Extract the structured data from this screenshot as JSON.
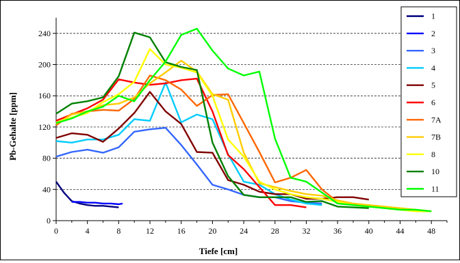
{
  "chart_data": {
    "type": "line",
    "title": "",
    "xlabel": "Tiefe [cm]",
    "ylabel": "Pb-Gehalte [ppm]",
    "xlim": [
      0,
      50
    ],
    "ylim": [
      0,
      260
    ],
    "x_ticks": [
      "0",
      "4",
      "8",
      "12",
      "16",
      "20",
      "24",
      "28",
      "32",
      "36",
      "40",
      "44",
      "48"
    ],
    "x_tick_values": [
      0,
      4,
      8,
      12,
      16,
      20,
      24,
      28,
      32,
      36,
      40,
      44,
      48
    ],
    "y_ticks": [
      "0",
      "40",
      "80",
      "120",
      "160",
      "200",
      "240"
    ],
    "y_tick_values": [
      0,
      40,
      80,
      120,
      160,
      200,
      240
    ],
    "grid": "horizontal dashed",
    "legend_position": "right",
    "series": [
      {
        "name": "1",
        "color": "#000080",
        "x": [
          0,
          1,
          2,
          3,
          4,
          5,
          6,
          7,
          8
        ],
        "y": [
          50,
          36,
          25,
          22,
          20,
          19,
          19,
          18,
          17
        ]
      },
      {
        "name": "2",
        "color": "#0000ff",
        "x": [
          2,
          3,
          4,
          5,
          6,
          7,
          8,
          8.5
        ],
        "y": [
          24,
          24,
          23,
          23,
          22,
          22,
          21,
          22
        ]
      },
      {
        "name": "3",
        "color": "#3366ff",
        "x": [
          0,
          2,
          4,
          6,
          8,
          10,
          12,
          14,
          16,
          18,
          20,
          22,
          24,
          26,
          28,
          30,
          32,
          34
        ],
        "y": [
          82,
          88,
          91,
          87,
          94,
          114,
          117,
          119,
          97,
          72,
          46,
          40,
          33,
          30,
          30,
          25,
          23,
          22
        ]
      },
      {
        "name": "4",
        "color": "#00ccff",
        "x": [
          0,
          2,
          4,
          6,
          8,
          10,
          12,
          14,
          16,
          18,
          20,
          22,
          24,
          26,
          28,
          30,
          32,
          34
        ],
        "y": [
          102,
          100,
          104,
          104,
          110,
          130,
          128,
          177,
          126,
          136,
          130,
          85,
          50,
          46,
          34,
          27,
          22,
          20
        ]
      },
      {
        "name": "5",
        "color": "#800000",
        "x": [
          0,
          2,
          4,
          6,
          8,
          10,
          12,
          14,
          16,
          18,
          20,
          22,
          24,
          26,
          28,
          30,
          32,
          34,
          36,
          38,
          40
        ],
        "y": [
          106,
          112,
          110,
          101,
          118,
          138,
          165,
          140,
          124,
          88,
          87,
          52,
          46,
          37,
          34,
          34,
          28,
          28,
          30,
          30,
          27
        ]
      },
      {
        "name": "6",
        "color": "#ff0000",
        "x": [
          0,
          2,
          4,
          6,
          8,
          10,
          12,
          14,
          16,
          18,
          20,
          22,
          24,
          26,
          28,
          30,
          32
        ],
        "y": [
          128,
          136,
          144,
          155,
          181,
          177,
          174,
          176,
          180,
          182,
          140,
          84,
          66,
          43,
          20,
          20,
          17
        ]
      },
      {
        "name": "7A",
        "color": "#ff6600",
        "x": [
          0,
          2,
          4,
          6,
          8,
          10,
          12,
          14,
          16,
          18,
          20,
          22,
          24,
          26,
          28,
          30,
          32,
          34,
          36,
          38,
          40
        ],
        "y": [
          122,
          137,
          140,
          142,
          141,
          156,
          186,
          180,
          168,
          147,
          161,
          162,
          125,
          88,
          49,
          55,
          65,
          40,
          24,
          20,
          18
        ]
      },
      {
        "name": "7B",
        "color": "#ffcc00",
        "x": [
          0,
          2,
          4,
          6,
          8,
          10,
          12,
          14,
          16,
          18,
          20,
          22,
          24,
          26,
          28,
          30,
          32,
          34,
          36,
          38,
          40,
          42,
          44,
          46,
          48
        ],
        "y": [
          124,
          136,
          140,
          148,
          150,
          158,
          176,
          190,
          205,
          191,
          162,
          155,
          87,
          48,
          43,
          38,
          34,
          32,
          26,
          22,
          20,
          18,
          16,
          14,
          12
        ]
      },
      {
        "name": "8",
        "color": "#ffff00",
        "x": [
          0,
          2,
          4,
          6,
          8,
          10,
          12,
          14,
          16,
          18,
          20,
          22,
          24,
          26,
          28,
          30,
          32,
          34,
          36,
          38,
          40,
          42,
          44,
          46,
          48
        ],
        "y": [
          126,
          132,
          138,
          152,
          162,
          178,
          220,
          200,
          196,
          190,
          160,
          104,
          82,
          50,
          40,
          34,
          30,
          28,
          24,
          20,
          18,
          16,
          14,
          12,
          12
        ]
      },
      {
        "name": "10",
        "color": "#008000",
        "x": [
          0,
          2,
          4,
          6,
          8,
          10,
          12,
          14,
          16,
          18,
          20,
          22,
          24,
          26,
          28,
          30,
          32,
          34,
          36,
          38,
          40
        ],
        "y": [
          137,
          150,
          153,
          158,
          185,
          241,
          235,
          203,
          197,
          193,
          100,
          57,
          33,
          30,
          30,
          30,
          24,
          25,
          18,
          17,
          16
        ]
      },
      {
        "name": "11",
        "color": "#00ff00",
        "x": [
          0,
          2,
          4,
          6,
          8,
          10,
          12,
          14,
          16,
          18,
          20,
          22,
          24,
          26,
          28,
          30,
          32,
          34,
          36,
          38,
          40,
          42,
          44,
          46,
          48
        ],
        "y": [
          125,
          131,
          140,
          146,
          160,
          153,
          180,
          204,
          238,
          246,
          218,
          195,
          186,
          191,
          105,
          55,
          50,
          36,
          22,
          20,
          18,
          16,
          14,
          14,
          12
        ]
      }
    ]
  }
}
